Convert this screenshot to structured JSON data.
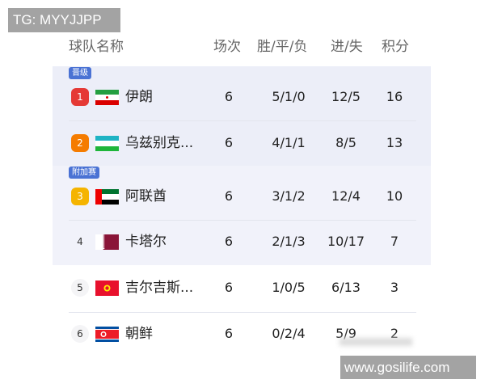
{
  "watermarks": {
    "top": "TG: MYYJJPP",
    "bottom": "www.gosilife.com"
  },
  "header": {
    "team": "球队名称",
    "played": "场次",
    "wdl": "胜/平/负",
    "goals": "进/失",
    "points": "积分"
  },
  "zones": {
    "promote": "晋级",
    "playoff": "附加赛"
  },
  "colors": {
    "rank1": "#e53935",
    "rank2": "#f57c00",
    "rank3": "#f5b400",
    "zone_tag": "#4a72d4"
  },
  "rows": [
    {
      "rank": "1",
      "flag": "iran-flag",
      "team": "伊朗",
      "played": "6",
      "wdl": "5/1/0",
      "goals": "12/5",
      "points": "16"
    },
    {
      "rank": "2",
      "flag": "uzbekistan-flag",
      "team": "乌兹别克...",
      "played": "6",
      "wdl": "4/1/1",
      "goals": "8/5",
      "points": "13"
    },
    {
      "rank": "3",
      "flag": "uae-flag",
      "team": "阿联酋",
      "played": "6",
      "wdl": "3/1/2",
      "goals": "12/4",
      "points": "10"
    },
    {
      "rank": "4",
      "flag": "qatar-flag",
      "team": "卡塔尔",
      "played": "6",
      "wdl": "2/1/3",
      "goals": "10/17",
      "points": "7"
    },
    {
      "rank": "5",
      "flag": "kyrgyzstan-flag",
      "team": "吉尔吉斯...",
      "played": "6",
      "wdl": "1/0/5",
      "goals": "6/13",
      "points": "3"
    },
    {
      "rank": "6",
      "flag": "north-korea-flag",
      "team": "朝鲜",
      "played": "6",
      "wdl": "0/2/4",
      "goals": "5/9",
      "points": "2"
    }
  ]
}
